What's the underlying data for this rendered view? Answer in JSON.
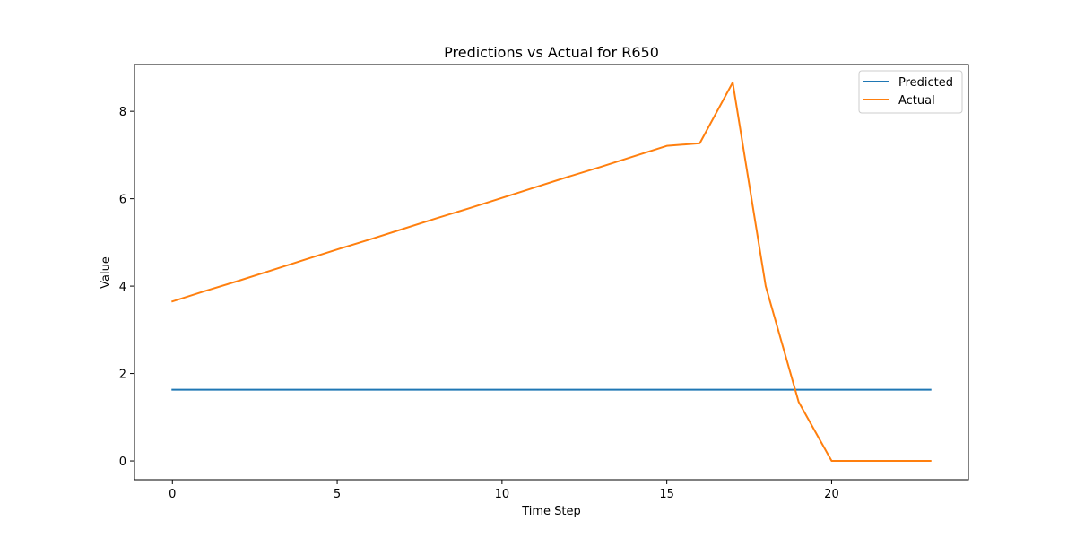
{
  "chart_data": {
    "type": "line",
    "title": "Predictions vs Actual for R650",
    "xlabel": "Time Step",
    "ylabel": "Value",
    "x": [
      0,
      1,
      2,
      3,
      4,
      5,
      6,
      7,
      8,
      9,
      10,
      11,
      12,
      13,
      14,
      15,
      16,
      17,
      18,
      19,
      20,
      21,
      22,
      23
    ],
    "xlim": [
      -1.15,
      24.15
    ],
    "ylim": [
      -0.43,
      9.07
    ],
    "xticks": [
      0,
      5,
      10,
      15,
      20
    ],
    "xtick_labels": [
      "0",
      "5",
      "10",
      "15",
      "20"
    ],
    "yticks": [
      0,
      2,
      4,
      6,
      8
    ],
    "ytick_labels": [
      "0",
      "2",
      "4",
      "6",
      "8"
    ],
    "grid": false,
    "legend_position": "top-right",
    "series": [
      {
        "name": "Predicted",
        "color": "#1f77b4",
        "values": [
          1.63,
          1.63,
          1.63,
          1.63,
          1.63,
          1.63,
          1.63,
          1.63,
          1.63,
          1.63,
          1.63,
          1.63,
          1.63,
          1.63,
          1.63,
          1.63,
          1.63,
          1.63,
          1.63,
          1.63,
          1.63,
          1.63,
          1.63,
          1.63
        ]
      },
      {
        "name": "Actual",
        "color": "#ff7f0e",
        "values": [
          3.65,
          3.89,
          4.12,
          4.36,
          4.6,
          4.84,
          5.07,
          5.31,
          5.55,
          5.78,
          6.02,
          6.26,
          6.5,
          6.73,
          6.97,
          7.21,
          7.27,
          8.66,
          4.0,
          1.35,
          0.0,
          0.0,
          0.0,
          0.0
        ]
      }
    ]
  }
}
